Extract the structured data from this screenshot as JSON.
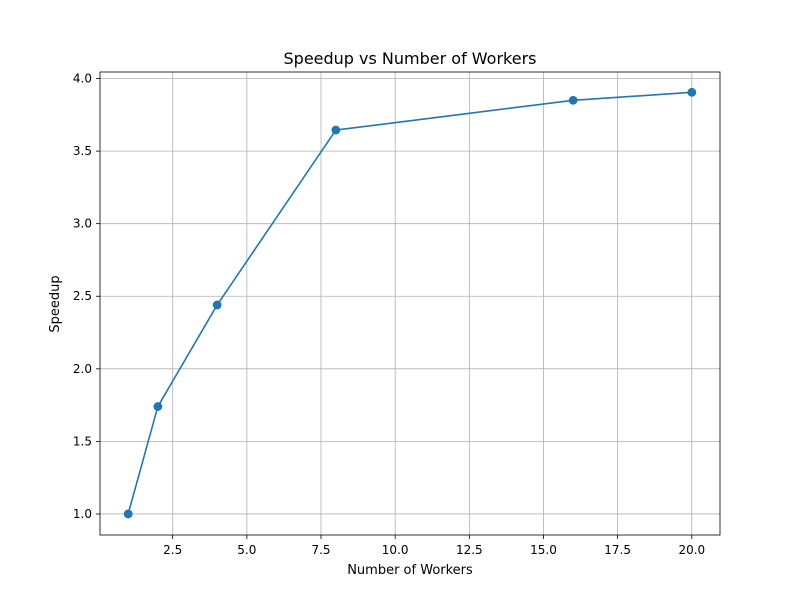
{
  "chart_data": {
    "type": "line",
    "title": "Speedup vs Number of Workers",
    "xlabel": "Number of Workers",
    "ylabel": "Speedup",
    "xlim": [
      0.05,
      20.95
    ],
    "ylim": [
      0.855,
      4.045
    ],
    "xticks": [
      2.5,
      5.0,
      7.5,
      10.0,
      12.5,
      15.0,
      17.5,
      20.0
    ],
    "xtick_labels": [
      "2.5",
      "5.0",
      "7.5",
      "10.0",
      "12.5",
      "15.0",
      "17.5",
      "20.0"
    ],
    "yticks": [
      1.0,
      1.5,
      2.0,
      2.5,
      3.0,
      3.5,
      4.0
    ],
    "ytick_labels": [
      "1.0",
      "1.5",
      "2.0",
      "2.5",
      "3.0",
      "3.5",
      "4.0"
    ],
    "grid": true,
    "series": [
      {
        "x": [
          1,
          2,
          4,
          8,
          16,
          20
        ],
        "y": [
          1.0,
          1.74,
          2.44,
          3.645,
          3.85,
          3.905
        ],
        "color": "#1f77b4",
        "marker": "circle"
      }
    ]
  }
}
